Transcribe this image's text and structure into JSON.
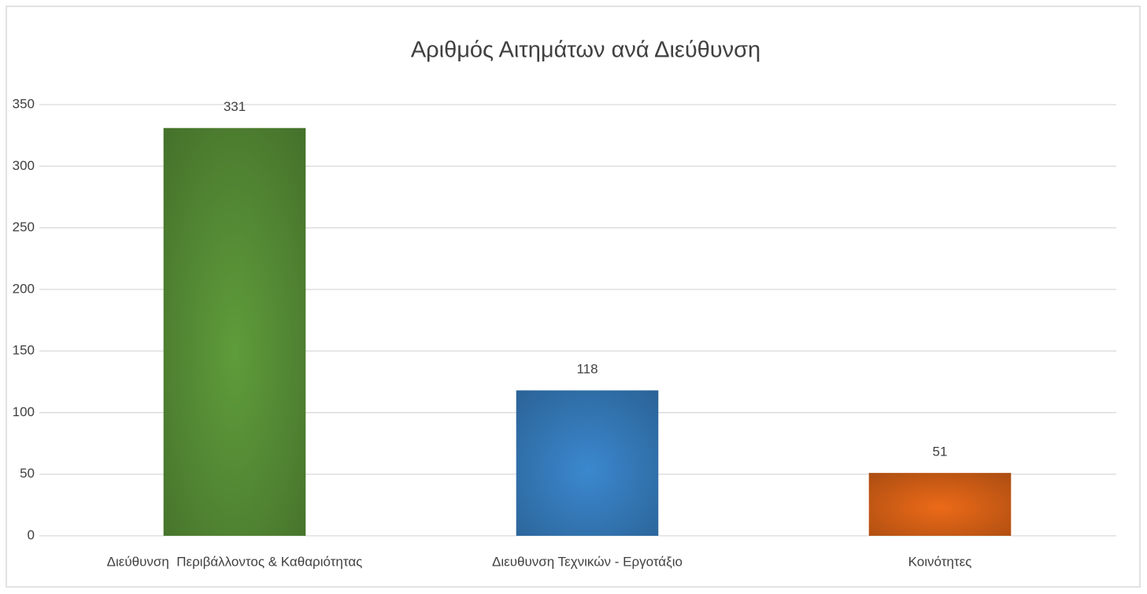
{
  "chart_data": {
    "type": "bar",
    "title": "Αριθμός Αιτημάτων ανά Διεύθυνση",
    "categories": [
      "Διεύθυνση  Περιβάλλοντος & Καθαριότητας",
      "Διευθυνση Τεχνικών - Εργοτάξιο",
      "Κοινότητες"
    ],
    "values": [
      331,
      118,
      51
    ],
    "colors": [
      "#5f9c3b",
      "#3b88cf",
      "#ec6a18"
    ],
    "ylim": [
      0,
      350
    ],
    "yticks": [
      0,
      50,
      100,
      150,
      200,
      250,
      300,
      350
    ],
    "grid": true,
    "data_labels": true
  }
}
